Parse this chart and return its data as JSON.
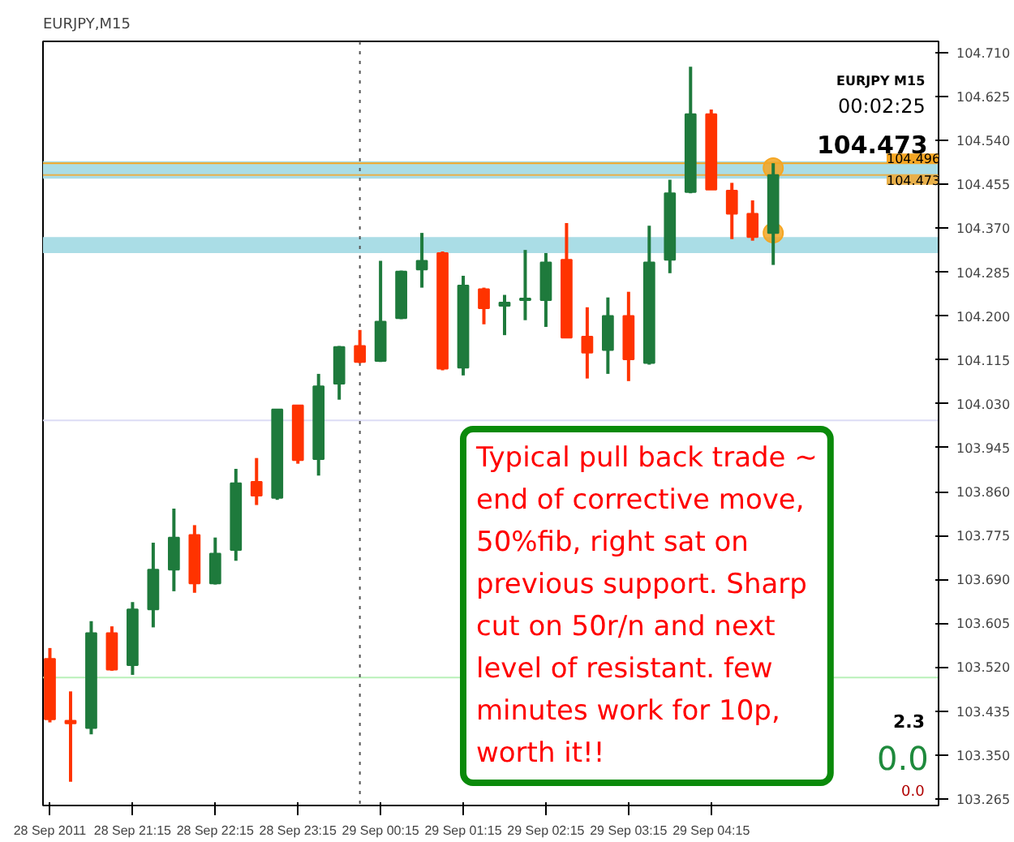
{
  "chart_data": {
    "type": "candlestick",
    "title": "EURJPY,M15",
    "x": [
      "2011-09-28T20:15",
      "2011-09-28T20:30",
      "2011-09-28T20:45",
      "2011-09-28T21:00",
      "2011-09-28T21:15",
      "2011-09-28T21:30",
      "2011-09-28T21:45",
      "2011-09-28T22:00",
      "2011-09-28T22:15",
      "2011-09-28T22:30",
      "2011-09-28T22:45",
      "2011-09-28T23:00",
      "2011-09-28T23:15",
      "2011-09-28T23:30",
      "2011-09-28T23:45",
      "2011-09-29T00:00",
      "2011-09-29T00:15",
      "2011-09-29T00:30",
      "2011-09-29T00:45",
      "2011-09-29T01:00",
      "2011-09-29T01:15",
      "2011-09-29T01:30",
      "2011-09-29T01:45",
      "2011-09-29T02:00",
      "2011-09-29T02:15",
      "2011-09-29T02:30",
      "2011-09-29T02:45",
      "2011-09-29T03:00",
      "2011-09-29T03:15",
      "2011-09-29T03:30",
      "2011-09-29T03:45",
      "2011-09-29T04:00",
      "2011-09-29T04:15",
      "2011-09-29T04:30",
      "2011-09-29T04:45",
      "2011-09-29T05:00"
    ],
    "xlim": [
      "2011-09-28T20:10",
      "2011-09-29T07:00"
    ],
    "xticks": [
      {
        "value": "2011-09-28T20:15",
        "label": "28 Sep 2011"
      },
      {
        "value": "2011-09-28T21:15",
        "label": "28 Sep 21:15"
      },
      {
        "value": "2011-09-28T22:15",
        "label": "28 Sep 22:15"
      },
      {
        "value": "2011-09-28T23:15",
        "label": "28 Sep 23:15"
      },
      {
        "value": "2011-09-29T00:15",
        "label": "29 Sep 00:15"
      },
      {
        "value": "2011-09-29T01:15",
        "label": "29 Sep 01:15"
      },
      {
        "value": "2011-09-29T02:15",
        "label": "29 Sep 02:15"
      },
      {
        "value": "2011-09-29T03:15",
        "label": "29 Sep 03:15"
      },
      {
        "value": "2011-09-29T04:15",
        "label": "29 Sep 04:15"
      }
    ],
    "ohlc": [
      [
        103.536,
        103.557,
        103.413,
        103.419
      ],
      [
        103.416,
        103.473,
        103.298,
        103.411
      ],
      [
        103.402,
        103.609,
        103.39,
        103.586
      ],
      [
        103.586,
        103.599,
        103.513,
        103.515
      ],
      [
        103.524,
        103.646,
        103.505,
        103.632
      ],
      [
        103.632,
        103.761,
        103.597,
        103.709
      ],
      [
        103.709,
        103.827,
        103.667,
        103.771
      ],
      [
        103.776,
        103.795,
        103.664,
        103.682
      ],
      [
        103.682,
        103.771,
        103.68,
        103.74
      ],
      [
        103.747,
        103.904,
        103.726,
        103.876
      ],
      [
        103.879,
        103.925,
        103.834,
        103.852
      ],
      [
        103.848,
        104.019,
        103.844,
        104.019
      ],
      [
        104.027,
        104.027,
        103.914,
        103.921
      ],
      [
        103.923,
        104.088,
        103.891,
        104.064
      ],
      [
        104.069,
        104.142,
        104.038,
        104.14
      ],
      [
        104.142,
        104.173,
        104.109,
        104.111
      ],
      [
        104.113,
        104.307,
        104.111,
        104.189
      ],
      [
        104.196,
        104.288,
        104.194,
        104.286
      ],
      [
        104.29,
        104.361,
        104.255,
        104.307
      ],
      [
        104.322,
        104.325,
        104.095,
        104.098
      ],
      [
        104.1,
        104.278,
        104.085,
        104.259
      ],
      [
        104.252,
        104.255,
        104.184,
        104.215
      ],
      [
        104.22,
        104.241,
        104.163,
        104.226
      ],
      [
        104.231,
        104.328,
        104.192,
        104.234
      ],
      [
        104.231,
        104.322,
        104.179,
        104.304
      ],
      [
        104.309,
        104.38,
        104.158,
        104.158
      ],
      [
        104.16,
        104.217,
        104.079,
        104.129
      ],
      [
        104.134,
        104.236,
        104.088,
        104.2
      ],
      [
        104.2,
        104.247,
        104.074,
        104.116
      ],
      [
        104.109,
        104.375,
        104.106,
        104.304
      ],
      [
        104.309,
        104.464,
        104.283,
        104.438
      ],
      [
        104.44,
        104.683,
        104.438,
        104.591
      ],
      [
        104.591,
        104.6,
        104.445,
        104.445
      ],
      [
        104.443,
        104.458,
        104.349,
        104.398
      ],
      [
        104.398,
        104.424,
        104.346,
        104.353
      ],
      [
        104.361,
        104.496,
        104.299,
        104.473
      ]
    ],
    "colors": [
      "#ff3300",
      "#ff3300",
      "#1e7a3c",
      "#ff3300",
      "#1e7a3c",
      "#1e7a3c",
      "#1e7a3c",
      "#ff3300",
      "#1e7a3c",
      "#1e7a3c",
      "#ff3300",
      "#1e7a3c",
      "#ff3300",
      "#1e7a3c",
      "#1e7a3c",
      "#ff3300",
      "#1e7a3c",
      "#1e7a3c",
      "#1e7a3c",
      "#ff3300",
      "#1e7a3c",
      "#ff3300",
      "#1e7a3c",
      "#1e7a3c",
      "#1e7a3c",
      "#ff3300",
      "#ff3300",
      "#1e7a3c",
      "#ff3300",
      "#1e7a3c",
      "#1e7a3c",
      "#1e7a3c",
      "#ff3300",
      "#ff3300",
      "#ff3300",
      "#1e7a3c"
    ],
    "series": [
      {
        "type": "scatter",
        "color": "#f5a623",
        "x": [
          "2011-09-29T05:00",
          "2011-09-29T05:00"
        ],
        "values": [
          104.487,
          104.361
        ]
      }
    ],
    "ylim": [
      103.252,
      104.732
    ],
    "yticks": [
      {
        "value": 104.71,
        "label": "104.710"
      },
      {
        "value": 104.625,
        "label": "104.625"
      },
      {
        "value": 104.54,
        "label": "104.540"
      },
      {
        "value": 104.455,
        "label": "104.455"
      },
      {
        "value": 104.37,
        "label": "104.370"
      },
      {
        "value": 104.285,
        "label": "104.285"
      },
      {
        "value": 104.2,
        "label": "104.200"
      },
      {
        "value": 104.115,
        "label": "104.115"
      },
      {
        "value": 104.03,
        "label": "104.030"
      },
      {
        "value": 103.945,
        "label": "103.945"
      },
      {
        "value": 103.86,
        "label": "103.860"
      },
      {
        "value": 103.775,
        "label": "103.775"
      },
      {
        "value": 103.69,
        "label": "103.690"
      },
      {
        "value": 103.605,
        "label": "103.605"
      },
      {
        "value": 103.52,
        "label": "103.520"
      },
      {
        "value": 103.435,
        "label": "103.435"
      },
      {
        "value": 103.35,
        "label": "103.350"
      },
      {
        "value": 103.265,
        "label": "103.265"
      }
    ],
    "bands": [
      {
        "axis": "y",
        "from": 104.466,
        "to": 104.5,
        "color": "#aadde6"
      },
      {
        "axis": "y",
        "from": 104.322,
        "to": 104.353,
        "color": "#aadde6"
      }
    ],
    "ref_lines": [
      {
        "axis": "y",
        "value": 104.496,
        "label": "104.496",
        "color": "#f5a623"
      },
      {
        "axis": "y",
        "value": 104.473,
        "label": "104.473",
        "color": "#e8b04a"
      },
      {
        "axis": "y",
        "value": 103.998,
        "color": "#dcdcf5"
      },
      {
        "axis": "y",
        "value": 103.5,
        "color": "#b8f0b8"
      },
      {
        "axis": "x",
        "value": "2011-09-29T00:00",
        "color": "#555555",
        "line_style": "dotted"
      }
    ],
    "annotations": [
      "EURJPY M15",
      "00:02:25",
      "104.473",
      "2.3",
      "0.0",
      "0.0",
      "Typical pull back trade ~\nend of corrective move,\n50%fib, right sat on\nprevious support. Sharp\ncut on 50r/n and next\nlevel of resistant. few\nminutes work for 10p,\nworth it!!"
    ],
    "grid": false
  }
}
